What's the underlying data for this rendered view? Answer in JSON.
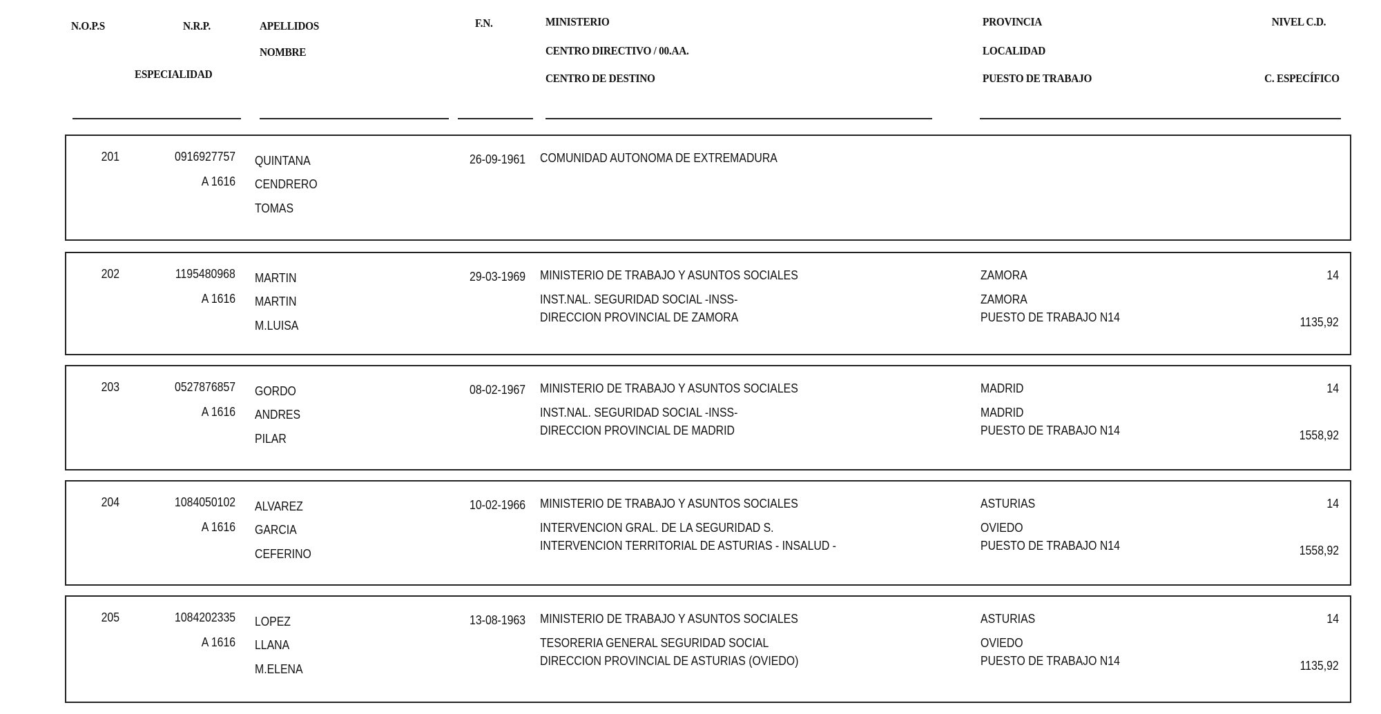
{
  "header": {
    "nops": "N.O.P.S",
    "nrp": "N.R.P.",
    "especialidad": "ESPECIALIDAD",
    "apellidos": "APELLIDOS",
    "nombre": "NOMBRE",
    "fn": "F.N.",
    "ministerio": "MINISTERIO",
    "centro_directivo": "CENTRO DIRECTIVO / 00.AA.",
    "centro_destino": "CENTRO DE DESTINO",
    "provincia": "PROVINCIA",
    "localidad": "LOCALIDAD",
    "puesto": "PUESTO DE TRABAJO",
    "nivel": "NIVEL C.D.",
    "especifico": "C. ESPECÍFICO"
  },
  "records": [
    {
      "nops": "201",
      "nrp": "0916927757",
      "especialidad": "A  1616",
      "apellido1": "QUINTANA",
      "apellido2": "CENDRERO",
      "nombre": "TOMAS",
      "fn": "26-09-1961",
      "ministerio": "COMUNIDAD AUTONOMA DE EXTREMADURA",
      "centro_directivo": "",
      "centro_destino": "",
      "provincia": "",
      "localidad": "",
      "puesto": "",
      "nivel": "",
      "especifico": ""
    },
    {
      "nops": "202",
      "nrp": "1195480968",
      "especialidad": "A  1616",
      "apellido1": "MARTIN",
      "apellido2": "MARTIN",
      "nombre": "M.LUISA",
      "fn": "29-03-1969",
      "ministerio": "MINISTERIO DE TRABAJO Y ASUNTOS SOCIALES",
      "centro_directivo": "INST.NAL. SEGURIDAD SOCIAL -INSS-",
      "centro_destino": "DIRECCION PROVINCIAL DE ZAMORA",
      "provincia": "ZAMORA",
      "localidad": "ZAMORA",
      "puesto": "PUESTO DE TRABAJO N14",
      "nivel": "14",
      "especifico": "1135,92"
    },
    {
      "nops": "203",
      "nrp": "0527876857",
      "especialidad": "A  1616",
      "apellido1": "GORDO",
      "apellido2": "ANDRES",
      "nombre": "PILAR",
      "fn": "08-02-1967",
      "ministerio": "MINISTERIO DE TRABAJO Y ASUNTOS SOCIALES",
      "centro_directivo": "INST.NAL. SEGURIDAD SOCIAL -INSS-",
      "centro_destino": "DIRECCION PROVINCIAL DE MADRID",
      "provincia": "MADRID",
      "localidad": "MADRID",
      "puesto": "PUESTO DE TRABAJO N14",
      "nivel": "14",
      "especifico": "1558,92"
    },
    {
      "nops": "204",
      "nrp": "1084050102",
      "especialidad": "A  1616",
      "apellido1": "ALVAREZ",
      "apellido2": "GARCIA",
      "nombre": "CEFERINO",
      "fn": "10-02-1966",
      "ministerio": "MINISTERIO DE TRABAJO Y ASUNTOS SOCIALES",
      "centro_directivo": "INTERVENCION GRAL. DE LA SEGURIDAD S.",
      "centro_destino": "INTERVENCION TERRITORIAL DE ASTURIAS - INSALUD -",
      "provincia": "ASTURIAS",
      "localidad": "OVIEDO",
      "puesto": "PUESTO DE TRABAJO N14",
      "nivel": "14",
      "especifico": "1558,92"
    },
    {
      "nops": "205",
      "nrp": "1084202335",
      "especialidad": "A  1616",
      "apellido1": "LOPEZ",
      "apellido2": "LLANA",
      "nombre": "M.ELENA",
      "fn": "13-08-1963",
      "ministerio": "MINISTERIO DE TRABAJO Y ASUNTOS SOCIALES",
      "centro_directivo": "TESORERIA GENERAL SEGURIDAD SOCIAL",
      "centro_destino": "DIRECCION PROVINCIAL DE ASTURIAS (OVIEDO)",
      "provincia": "ASTURIAS",
      "localidad": "OVIEDO",
      "puesto": "PUESTO DE TRABAJO N14",
      "nivel": "14",
      "especifico": "1135,92"
    }
  ]
}
